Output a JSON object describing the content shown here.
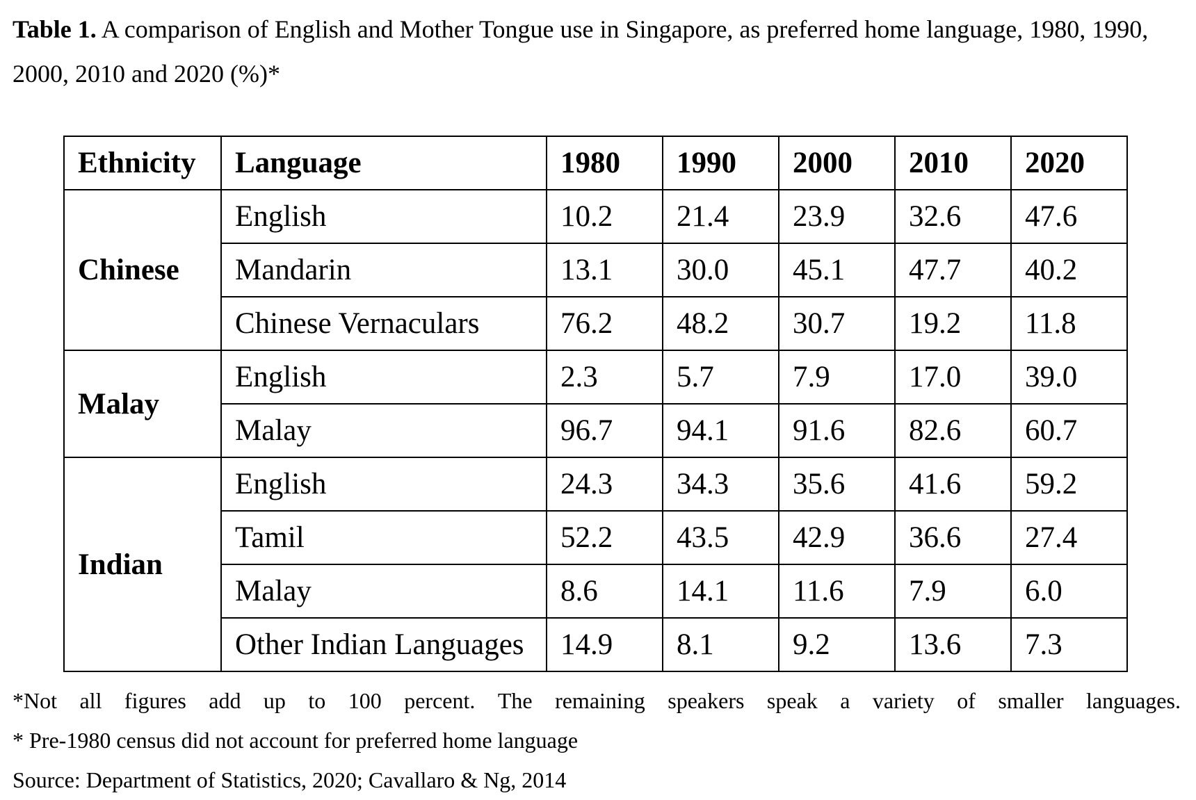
{
  "caption": {
    "label": "Table 1.",
    "text": "A comparison of English and Mother Tongue use in Singapore, as preferred home language, 1980, 1990, 2000, 2010 and 2020 (%)*"
  },
  "table": {
    "headers": [
      "Ethnicity",
      "Language",
      "1980",
      "1990",
      "2000",
      "2010",
      "2020"
    ],
    "groups": [
      {
        "ethnicity": "Chinese",
        "rows": [
          {
            "language": "English",
            "values": [
              "10.2",
              "21.4",
              "23.9",
              "32.6",
              "47.6"
            ]
          },
          {
            "language": "Mandarin",
            "values": [
              "13.1",
              "30.0",
              "45.1",
              "47.7",
              "40.2"
            ]
          },
          {
            "language": "Chinese Vernaculars",
            "values": [
              "76.2",
              "48.2",
              "30.7",
              "19.2",
              "11.8"
            ]
          }
        ]
      },
      {
        "ethnicity": "Malay",
        "rows": [
          {
            "language": "English",
            "values": [
              "2.3",
              "5.7",
              "7.9",
              "17.0",
              "39.0"
            ]
          },
          {
            "language": "Malay",
            "values": [
              "96.7",
              "94.1",
              "91.6",
              "82.6",
              "60.7"
            ]
          }
        ]
      },
      {
        "ethnicity": "Indian",
        "rows": [
          {
            "language": "English",
            "values": [
              "24.3",
              "34.3",
              "35.6",
              "41.6",
              "59.2"
            ]
          },
          {
            "language": "Tamil",
            "values": [
              "52.2",
              "43.5",
              "42.9",
              "36.6",
              "27.4"
            ]
          },
          {
            "language": "Malay",
            "values": [
              "8.6",
              "14.1",
              "11.6",
              "7.9",
              "6.0"
            ]
          },
          {
            "language": "Other Indian Languages",
            "values": [
              "14.9",
              "8.1",
              "9.2",
              "13.6",
              "7.3"
            ]
          }
        ]
      }
    ]
  },
  "notes": [
    "*Not all figures add up to 100 percent. The remaining speakers speak a variety of smaller languages.",
    "* Pre-1980 census did not account for preferred home language",
    "Source: Department of Statistics, 2020; Cavallaro & Ng, 2014"
  ]
}
